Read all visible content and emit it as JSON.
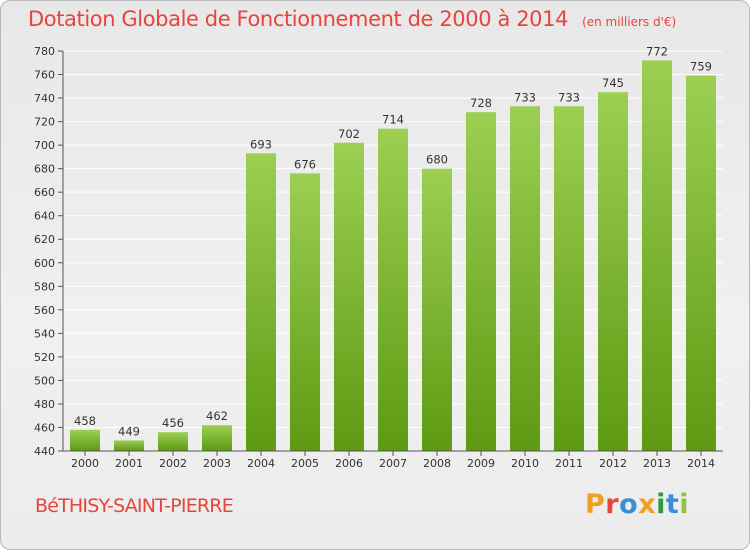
{
  "header": {
    "title": "Dotation Globale de Fonctionnement de 2000 à 2014",
    "unit": "(en milliers d'€)"
  },
  "footer": {
    "commune": "BéTHISY-SAINT-PIERRE",
    "logo": "Proxiti",
    "logo_colors": [
      "#f0a020",
      "#e8443c",
      "#3a8fd8",
      "#f0a020",
      "#2f9a3c",
      "#3a8fd8",
      "#8cc63f"
    ]
  },
  "colors": {
    "title": "#e8443c",
    "bar_light": "#9ccf52",
    "bar_dark": "#5d9a12",
    "grid": "#ffffff"
  },
  "chart_data": {
    "type": "bar",
    "categories": [
      "2000",
      "2001",
      "2002",
      "2003",
      "2004",
      "2005",
      "2006",
      "2007",
      "2008",
      "2009",
      "2010",
      "2011",
      "2012",
      "2013",
      "2014"
    ],
    "values": [
      458,
      449,
      456,
      462,
      693,
      676,
      702,
      714,
      680,
      728,
      733,
      733,
      745,
      772,
      759
    ],
    "ylim": [
      440,
      780
    ],
    "yticks": [
      440,
      460,
      480,
      500,
      520,
      540,
      560,
      580,
      600,
      620,
      640,
      660,
      680,
      700,
      720,
      740,
      760,
      780
    ],
    "grid": true,
    "data_labels": true
  }
}
